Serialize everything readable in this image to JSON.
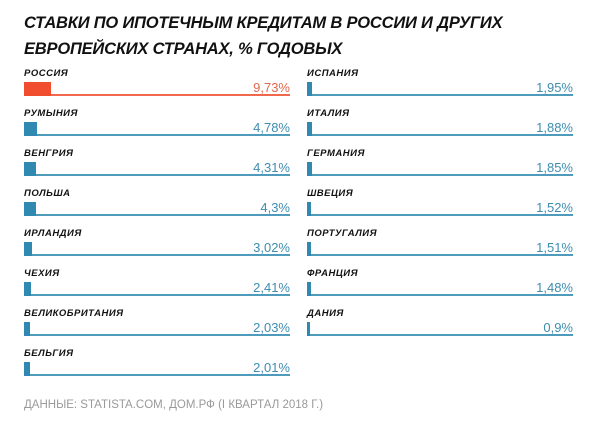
{
  "chart_data": {
    "type": "bar",
    "title": "СТАВКИ ПО ИПОТЕЧНЫМ КРЕДИТАМ В РОССИИ И ДРУГИХ ЕВРОПЕЙСКИХ СТРАНАХ, % ГОДОВЫХ",
    "source": "ДАННЫЕ: STATISTA.COM, ДОМ.РФ (I КВАРТАЛ 2018 Г.)",
    "unit": "%",
    "orientation": "horizontal",
    "colors": {
      "highlight": "#f04e2f",
      "default": "#2f89b0",
      "value_highlight": "#e0664c",
      "value_default": "#3d8db0"
    },
    "columns": [
      [
        {
          "category": "РОССИЯ",
          "value": 9.73,
          "label": "9,73%",
          "highlight": true
        },
        {
          "category": "РУМЫНИЯ",
          "value": 4.78,
          "label": "4,78%"
        },
        {
          "category": "ВЕНГРИЯ",
          "value": 4.31,
          "label": "4,31%"
        },
        {
          "category": "ПОЛЬША",
          "value": 4.3,
          "label": "4,3%"
        },
        {
          "category": "ИРЛАНДИЯ",
          "value": 3.02,
          "label": "3,02%"
        },
        {
          "category": "ЧЕХИЯ",
          "value": 2.41,
          "label": "2,41%"
        },
        {
          "category": "ВЕЛИКОБРИТАНИЯ",
          "value": 2.03,
          "label": "2,03%"
        },
        {
          "category": "БЕЛЬГИЯ",
          "value": 2.01,
          "label": "2,01%"
        }
      ],
      [
        {
          "category": "ИСПАНИЯ",
          "value": 1.95,
          "label": "1,95%"
        },
        {
          "category": "ИТАЛИЯ",
          "value": 1.88,
          "label": "1,88%"
        },
        {
          "category": "ГЕРМАНИЯ",
          "value": 1.85,
          "label": "1,85%"
        },
        {
          "category": "ШВЕЦИЯ",
          "value": 1.52,
          "label": "1,52%"
        },
        {
          "category": "ПОРТУГАЛИЯ",
          "value": 1.51,
          "label": "1,51%"
        },
        {
          "category": "ФРАНЦИЯ",
          "value": 1.48,
          "label": "1,48%"
        },
        {
          "category": "ДАНИЯ",
          "value": 0.9,
          "label": "0,9%"
        }
      ]
    ]
  }
}
